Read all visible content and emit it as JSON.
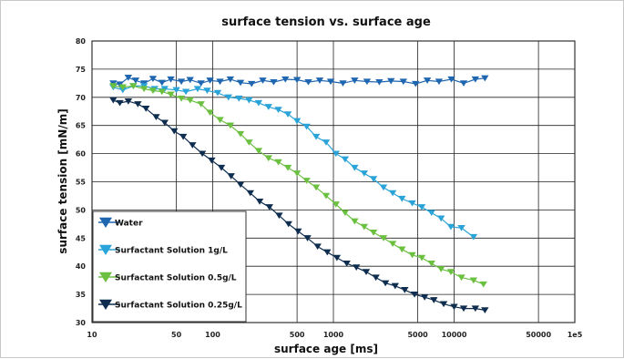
{
  "chart_data": {
    "type": "line",
    "title": "surface tension vs. surface age",
    "xlabel": "surface age [ms]",
    "ylabel": "surface tension [mN/m]",
    "xscale": "log",
    "xlim": [
      10,
      100000
    ],
    "ylim": [
      30,
      80
    ],
    "grid": true,
    "legend_position": "bottom-left",
    "x_ticks": [
      10,
      50,
      100,
      500,
      1000,
      5000,
      10000,
      50000,
      100000
    ],
    "x_tick_labels": [
      "10",
      "50",
      "100",
      "500",
      "1000",
      "5000",
      "10000",
      "50000",
      "1e5"
    ],
    "y_ticks": [
      30,
      35,
      40,
      45,
      50,
      55,
      60,
      65,
      70,
      75,
      80
    ],
    "y_tick_labels": [
      "30",
      "35",
      "40",
      "45",
      "50",
      "55",
      "60",
      "65",
      "70",
      "75",
      "80"
    ],
    "series": [
      {
        "name": "Water",
        "color": "#1f66b0",
        "x": [
          15,
          17,
          20,
          23,
          27,
          32,
          38,
          45,
          55,
          65,
          80,
          95,
          115,
          140,
          170,
          210,
          260,
          320,
          400,
          500,
          620,
          770,
          950,
          1200,
          1500,
          1900,
          2400,
          3000,
          3800,
          4800,
          6000,
          7500,
          9500,
          12000,
          15000,
          18000
        ],
        "y": [
          72.5,
          72.3,
          73.5,
          73.0,
          72.5,
          73.3,
          72.6,
          73.2,
          72.8,
          73.1,
          72.5,
          73.0,
          72.8,
          73.2,
          72.6,
          72.4,
          73.0,
          72.7,
          73.2,
          73.1,
          72.7,
          73.0,
          72.8,
          72.5,
          73.0,
          72.8,
          72.7,
          72.9,
          72.8,
          72.4,
          73.0,
          72.8,
          73.2,
          72.5,
          73.2,
          73.4
        ]
      },
      {
        "name": "Surfactant Solution 1g/L",
        "color": "#2aa3d8",
        "x": [
          15,
          18,
          22,
          27,
          33,
          40,
          50,
          60,
          75,
          90,
          110,
          135,
          165,
          200,
          240,
          290,
          350,
          420,
          500,
          600,
          720,
          870,
          1050,
          1250,
          1500,
          1800,
          2150,
          2600,
          3100,
          3700,
          4500,
          5400,
          6500,
          7800,
          9400,
          11500,
          14500
        ],
        "y": [
          71.8,
          71.3,
          72.0,
          72.0,
          71.5,
          71.5,
          71.3,
          71.0,
          71.5,
          71.2,
          70.8,
          70.0,
          69.8,
          69.5,
          69.0,
          68.3,
          67.8,
          67.0,
          65.8,
          64.8,
          63.0,
          62.0,
          60.0,
          59.0,
          57.5,
          56.5,
          55.5,
          54.0,
          53.0,
          52.0,
          51.2,
          50.5,
          49.5,
          48.5,
          47.0,
          46.8,
          45.2
        ]
      },
      {
        "name": "Surfactant Solution 0.5g/L",
        "color": "#6bc040",
        "x": [
          15,
          18,
          22,
          27,
          32,
          38,
          45,
          55,
          65,
          80,
          95,
          115,
          140,
          170,
          200,
          240,
          290,
          350,
          420,
          500,
          600,
          720,
          870,
          1050,
          1250,
          1500,
          1800,
          2150,
          2600,
          3100,
          3700,
          4500,
          5400,
          6500,
          7800,
          9400,
          11500,
          14500,
          17500
        ],
        "y": [
          72.0,
          71.8,
          72.0,
          71.5,
          71.2,
          71.0,
          70.5,
          69.8,
          69.5,
          68.8,
          67.3,
          66.0,
          65.0,
          63.5,
          62.0,
          60.5,
          59.2,
          58.5,
          57.5,
          56.5,
          55.2,
          54.0,
          52.5,
          51.0,
          49.5,
          48.0,
          47.0,
          46.0,
          45.0,
          44.0,
          43.0,
          42.0,
          41.5,
          40.5,
          39.5,
          39.0,
          38.0,
          37.5,
          36.8
        ]
      },
      {
        "name": "Surfactant Solution 0.25g/L",
        "color": "#0f2d4f",
        "x": [
          15,
          17,
          20,
          24,
          28,
          34,
          40,
          48,
          57,
          68,
          82,
          98,
          118,
          142,
          170,
          205,
          245,
          295,
          355,
          425,
          510,
          610,
          740,
          890,
          1070,
          1290,
          1550,
          1870,
          2250,
          2700,
          3250,
          3900,
          4700,
          5700,
          6800,
          8200,
          10000,
          12000,
          15000,
          18000
        ],
        "y": [
          69.5,
          69.0,
          69.3,
          68.8,
          68.0,
          66.5,
          65.5,
          64.0,
          63.0,
          61.5,
          60.0,
          58.8,
          57.5,
          56.0,
          54.5,
          53.0,
          51.5,
          50.5,
          49.0,
          47.5,
          46.2,
          45.0,
          43.5,
          42.5,
          41.5,
          40.5,
          39.8,
          39.0,
          38.0,
          37.0,
          36.5,
          35.8,
          35.0,
          34.5,
          34.0,
          33.3,
          32.8,
          32.5,
          32.5,
          32.2
        ]
      }
    ]
  }
}
